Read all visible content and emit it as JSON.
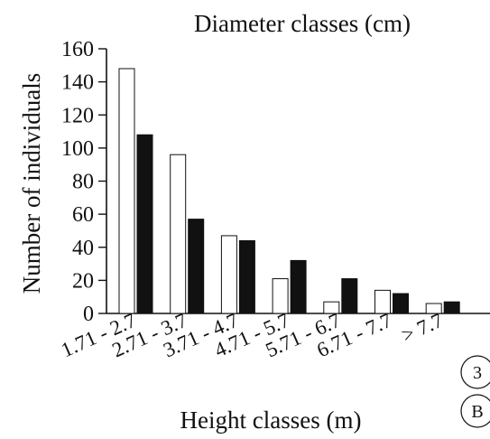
{
  "chart_data": {
    "type": "bar",
    "title": "Diameter classes (cm)",
    "xlabel": "Height classes (m)",
    "ylabel": "Number of individuals",
    "categories": [
      "1.71 - 2.7",
      "2.71 - 3.7",
      "3.71 - 4.7",
      "4.71 - 5.7",
      "5.71 - 6.7",
      "6.71 - 7.7",
      "> 7.7"
    ],
    "series": [
      {
        "values": [
          148,
          96,
          47,
          21,
          7,
          14,
          6
        ]
      },
      {
        "values": [
          108,
          57,
          44,
          32,
          21,
          12,
          7
        ]
      }
    ],
    "series_colors": [
      "#ffffff",
      "#111111"
    ],
    "ylim": [
      0,
      160
    ],
    "yticks": [
      0,
      20,
      40,
      60,
      80,
      100,
      120,
      140,
      160
    ],
    "grid": false,
    "legend": "none",
    "badges": [
      "3",
      "B"
    ]
  }
}
